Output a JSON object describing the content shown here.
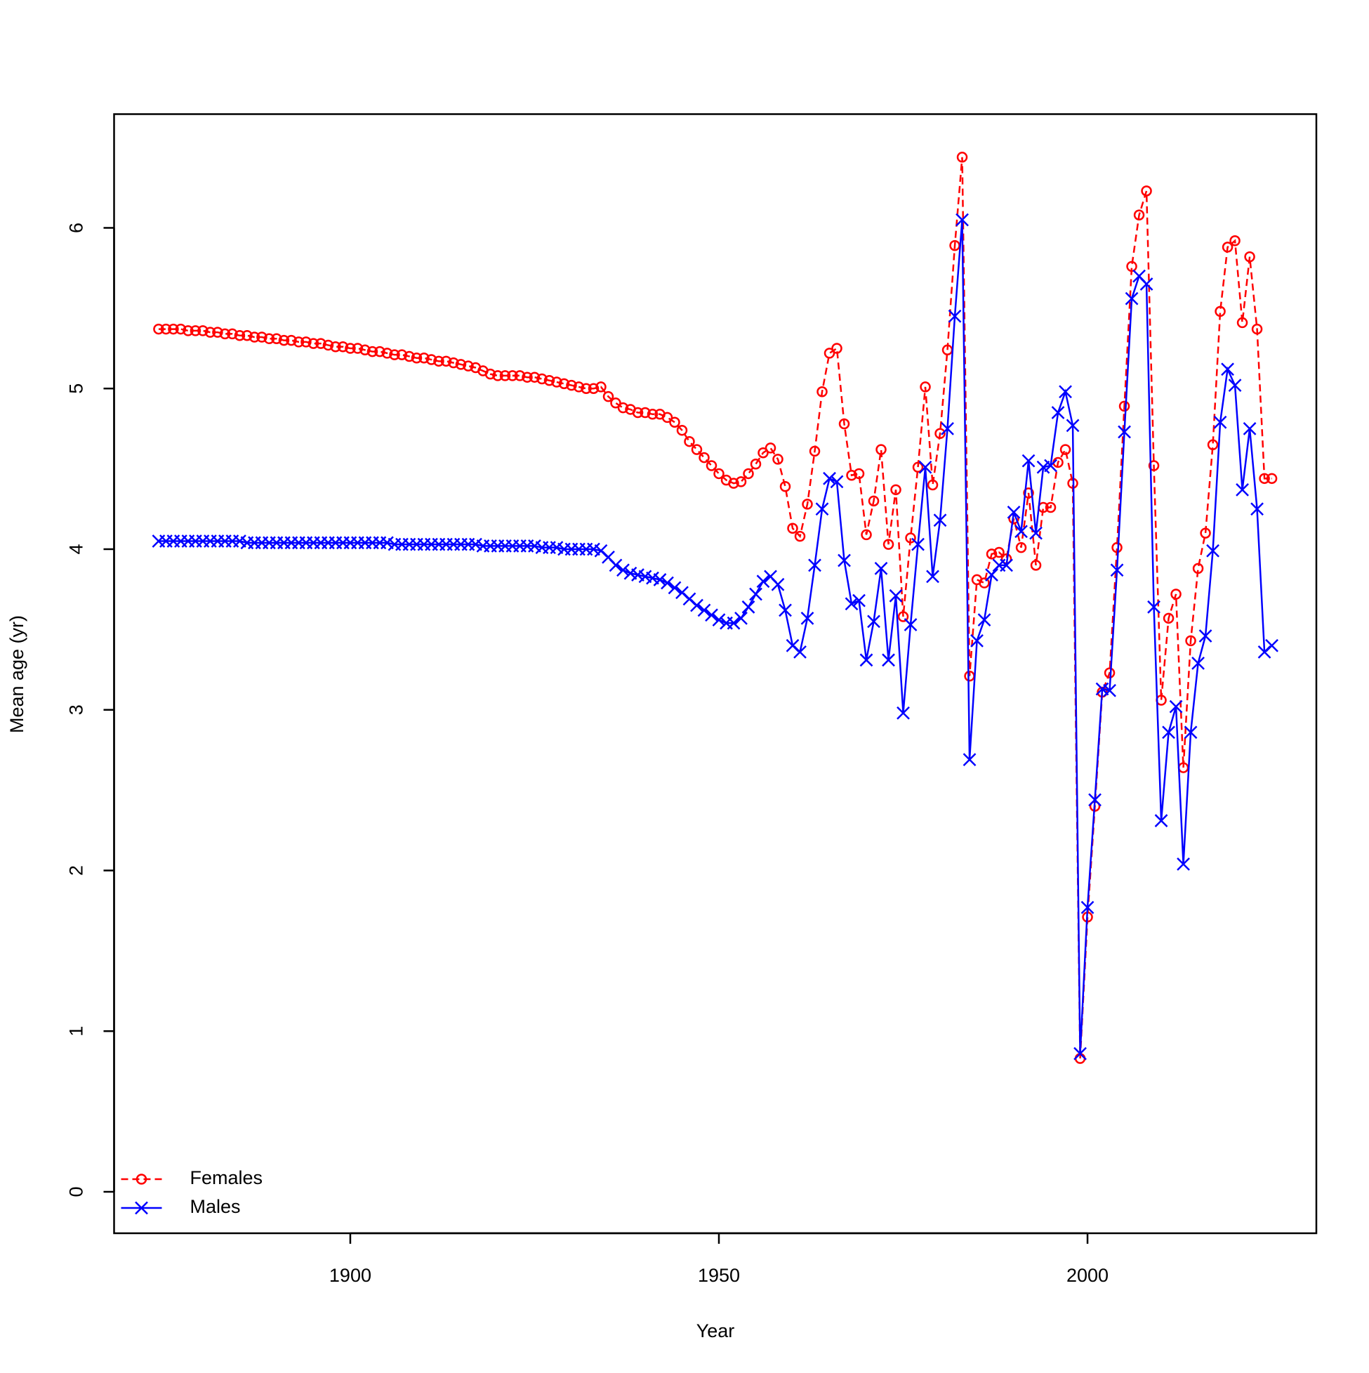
{
  "chart_data": {
    "type": "line",
    "xlabel": "Year",
    "ylabel": "Mean age (yr)",
    "x": [
      1874,
      1875,
      1876,
      1877,
      1878,
      1879,
      1880,
      1881,
      1882,
      1883,
      1884,
      1885,
      1886,
      1887,
      1888,
      1889,
      1890,
      1891,
      1892,
      1893,
      1894,
      1895,
      1896,
      1897,
      1898,
      1899,
      1900,
      1901,
      1902,
      1903,
      1904,
      1905,
      1906,
      1907,
      1908,
      1909,
      1910,
      1911,
      1912,
      1913,
      1914,
      1915,
      1916,
      1917,
      1918,
      1919,
      1920,
      1921,
      1922,
      1923,
      1924,
      1925,
      1926,
      1927,
      1928,
      1929,
      1930,
      1931,
      1932,
      1933,
      1934,
      1935,
      1936,
      1937,
      1938,
      1939,
      1940,
      1941,
      1942,
      1943,
      1944,
      1945,
      1946,
      1947,
      1948,
      1949,
      1950,
      1951,
      1952,
      1953,
      1954,
      1955,
      1956,
      1957,
      1958,
      1959,
      1960,
      1961,
      1962,
      1963,
      1964,
      1965,
      1966,
      1967,
      1968,
      1969,
      1970,
      1971,
      1972,
      1973,
      1974,
      1975,
      1976,
      1977,
      1978,
      1979,
      1980,
      1981,
      1982,
      1983,
      1984,
      1985,
      1986,
      1987,
      1988,
      1989,
      1990,
      1991,
      1992,
      1993,
      1994,
      1995,
      1996,
      1997,
      1998,
      1999,
      2000,
      2001,
      2002,
      2003,
      2004,
      2005,
      2006,
      2007,
      2008,
      2009,
      2010,
      2011,
      2012,
      2013,
      2014,
      2015,
      2016,
      2017,
      2018,
      2019,
      2020,
      2021,
      2022,
      2023,
      2024,
      2025
    ],
    "series": [
      {
        "name": "Females",
        "color": "#ff0000",
        "dashed": true,
        "marker": "circle",
        "values": [
          5.37,
          5.37,
          5.37,
          5.37,
          5.36,
          5.36,
          5.36,
          5.35,
          5.35,
          5.34,
          5.34,
          5.33,
          5.33,
          5.32,
          5.32,
          5.31,
          5.31,
          5.3,
          5.3,
          5.29,
          5.29,
          5.28,
          5.28,
          5.27,
          5.26,
          5.26,
          5.25,
          5.25,
          5.24,
          5.23,
          5.23,
          5.22,
          5.21,
          5.21,
          5.2,
          5.19,
          5.19,
          5.18,
          5.17,
          5.17,
          5.16,
          5.15,
          5.14,
          5.13,
          5.11,
          5.09,
          5.08,
          5.08,
          5.08,
          5.08,
          5.07,
          5.07,
          5.06,
          5.05,
          5.04,
          5.03,
          5.02,
          5.01,
          5.0,
          5.0,
          5.01,
          4.95,
          4.91,
          4.88,
          4.87,
          4.85,
          4.85,
          4.84,
          4.84,
          4.82,
          4.79,
          4.74,
          4.67,
          4.62,
          4.57,
          4.52,
          4.47,
          4.43,
          4.41,
          4.42,
          4.47,
          4.53,
          4.6,
          4.63,
          4.56,
          4.39,
          4.13,
          4.08,
          4.28,
          4.61,
          4.98,
          5.22,
          5.25,
          4.78,
          4.46,
          4.47,
          4.09,
          4.3,
          4.62,
          4.03,
          4.37,
          3.58,
          4.07,
          4.51,
          5.01,
          4.4,
          4.72,
          5.24,
          5.89,
          6.44,
          3.21,
          3.81,
          3.79,
          3.97,
          3.98,
          3.94,
          4.19,
          4.01,
          4.35,
          3.9,
          4.26,
          4.26,
          4.54,
          4.62,
          4.41,
          0.83,
          1.71,
          2.4,
          3.11,
          3.23,
          4.01,
          4.89,
          5.76,
          6.08,
          6.23,
          4.52,
          3.06,
          3.57,
          3.72,
          2.64,
          3.43,
          3.88,
          4.1,
          4.65,
          5.48,
          5.88,
          5.92,
          5.41,
          5.82,
          5.37,
          4.44,
          4.44
        ]
      },
      {
        "name": "Males",
        "color": "#0000ff",
        "dashed": false,
        "marker": "cross",
        "values": [
          4.05,
          4.05,
          4.05,
          4.05,
          4.05,
          4.05,
          4.05,
          4.05,
          4.05,
          4.05,
          4.05,
          4.05,
          4.04,
          4.04,
          4.04,
          4.04,
          4.04,
          4.04,
          4.04,
          4.04,
          4.04,
          4.04,
          4.04,
          4.04,
          4.04,
          4.04,
          4.04,
          4.04,
          4.04,
          4.04,
          4.04,
          4.04,
          4.03,
          4.03,
          4.03,
          4.03,
          4.03,
          4.03,
          4.03,
          4.03,
          4.03,
          4.03,
          4.03,
          4.03,
          4.02,
          4.02,
          4.02,
          4.02,
          4.02,
          4.02,
          4.02,
          4.02,
          4.01,
          4.01,
          4.01,
          4.0,
          4.0,
          4.0,
          4.0,
          4.0,
          3.99,
          3.95,
          3.9,
          3.87,
          3.85,
          3.84,
          3.83,
          3.82,
          3.81,
          3.79,
          3.76,
          3.73,
          3.69,
          3.65,
          3.62,
          3.59,
          3.56,
          3.54,
          3.54,
          3.57,
          3.64,
          3.72,
          3.8,
          3.83,
          3.78,
          3.62,
          3.4,
          3.36,
          3.57,
          3.9,
          4.25,
          4.44,
          4.42,
          3.93,
          3.66,
          3.68,
          3.31,
          3.55,
          3.88,
          3.31,
          3.71,
          2.98,
          3.53,
          4.03,
          4.51,
          3.83,
          4.18,
          4.75,
          5.45,
          6.05,
          2.69,
          3.43,
          3.56,
          3.84,
          3.9,
          3.9,
          4.23,
          4.11,
          4.55,
          4.1,
          4.51,
          4.52,
          4.85,
          4.98,
          4.77,
          0.86,
          1.77,
          2.44,
          3.13,
          3.12,
          3.87,
          4.73,
          5.56,
          5.7,
          5.65,
          3.64,
          2.31,
          2.86,
          3.02,
          2.04,
          2.86,
          3.29,
          3.46,
          3.99,
          4.79,
          5.12,
          5.02,
          4.37,
          4.75,
          4.25,
          3.36,
          3.4
        ]
      }
    ],
    "xlim": [
      1867.96,
      2031.04
    ],
    "ylim": [
      -0.258,
      6.708
    ],
    "xticks": [
      1900,
      1950,
      2000
    ],
    "yticks": [
      0,
      1,
      2,
      3,
      4,
      5,
      6
    ],
    "legend": "bottomleft",
    "grid": false
  }
}
